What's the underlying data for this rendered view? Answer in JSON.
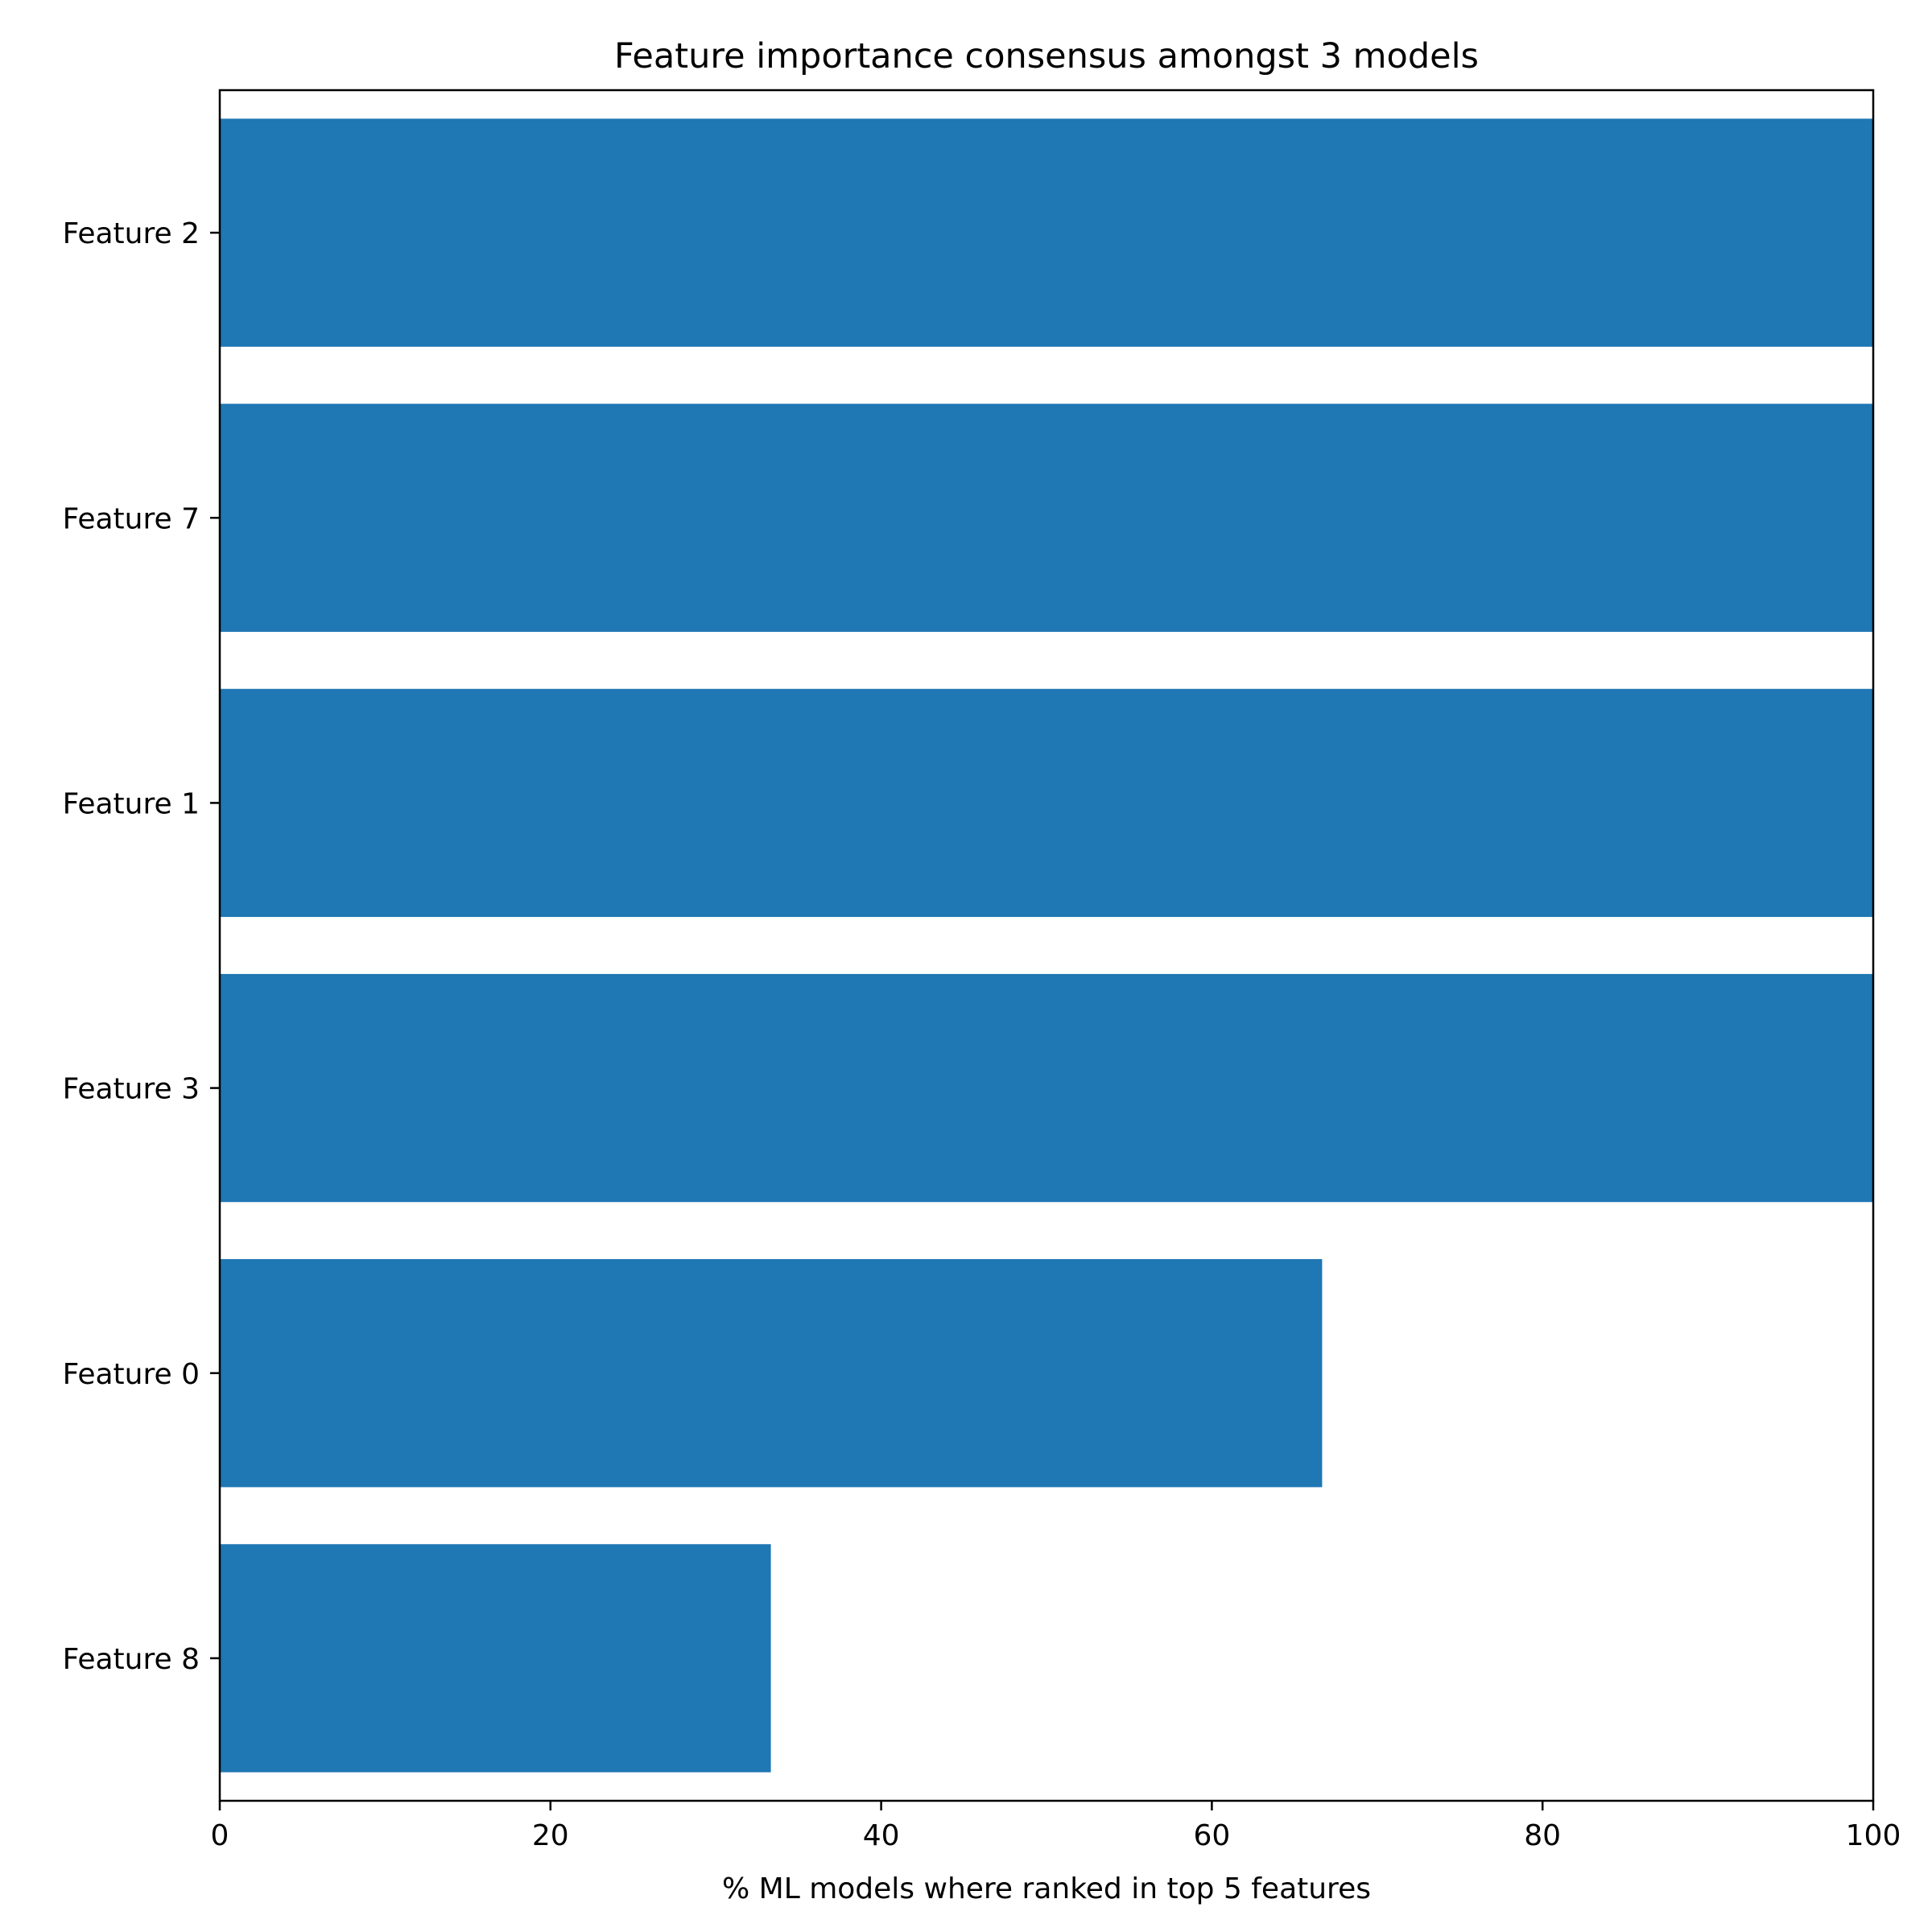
{
  "chart_data": {
    "type": "bar",
    "orientation": "horizontal",
    "title": "Feature importance consensus amongst 3 models",
    "xlabel": "% ML models where ranked in top 5 features",
    "ylabel": "",
    "categories": [
      "Feature 2",
      "Feature 7",
      "Feature 1",
      "Feature 3",
      "Feature 0",
      "Feature 8"
    ],
    "values": [
      100,
      100,
      100,
      100,
      66.67,
      33.33
    ],
    "xlim": [
      0,
      100
    ],
    "xticks": [
      0,
      20,
      40,
      60,
      80,
      100
    ],
    "xtick_labels": [
      "0",
      "20",
      "40",
      "60",
      "80",
      "100"
    ],
    "grid": false,
    "bar_color": "#1f77b4"
  }
}
